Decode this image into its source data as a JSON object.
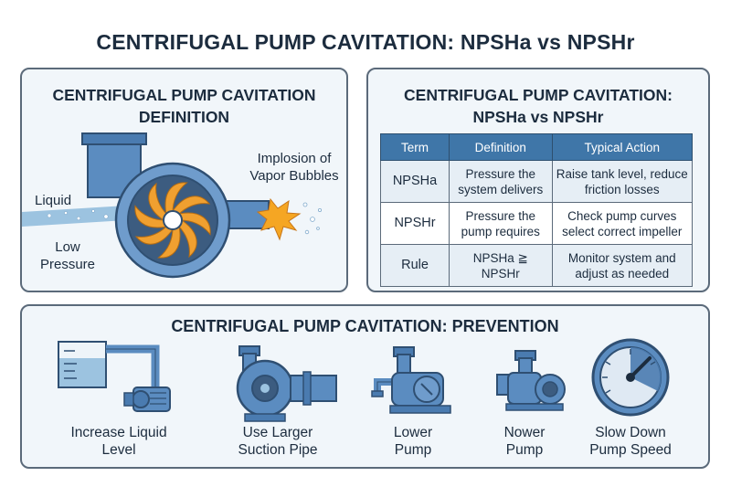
{
  "title": "CENTRIFUGAL PUMP CAVITATION: NPSHa vs NPSHr",
  "definition": {
    "title_line1": "CENTRIFUGAL PUMP CAVITATION",
    "title_line2": "DEFINITION",
    "label_liquid": "Liquid",
    "label_low_pressure": "Low\nPressure",
    "label_implosion": "Implosion of\nVapor Bubbles"
  },
  "comparison": {
    "title_line1": "CENTRIFUGAL PUMP CAVITATION:",
    "title_line2": "NPSHa vs NPSHr",
    "headers": [
      "Term",
      "Definition",
      "Typical Action"
    ],
    "rows": [
      [
        "NPSHa",
        "Pressure the system delivers",
        "Raise tank level, reduce friction losses"
      ],
      [
        "NPSHr",
        "Pressure the pump requires",
        "Check pump curves select correct impeller"
      ],
      [
        "Rule",
        "NPSHa ≧ NPSHr",
        "Monitor system and adjust as needed"
      ]
    ]
  },
  "prevention": {
    "title": "CENTRIFUGAL PUMP CAVITATION: PREVENTION",
    "items": [
      {
        "label": "Increase Liquid\nLevel",
        "icon": "tank-pump-icon"
      },
      {
        "label": "Use Larger\nSuction Pipe",
        "icon": "large-pipe-pump-icon"
      },
      {
        "label": "Lower\nPump",
        "icon": "lowered-pump-icon"
      },
      {
        "label": "Nower\nPump",
        "icon": "pump-icon"
      },
      {
        "label": "Slow Down\nPump Speed",
        "icon": "gauge-icon"
      }
    ]
  },
  "colors": {
    "panel_border": "#5b6a7a",
    "panel_fill": "#f1f6fa",
    "pump_blue": "#5b8cc0",
    "impeller_orange": "#f0a030",
    "table_header": "#3f76a8"
  }
}
